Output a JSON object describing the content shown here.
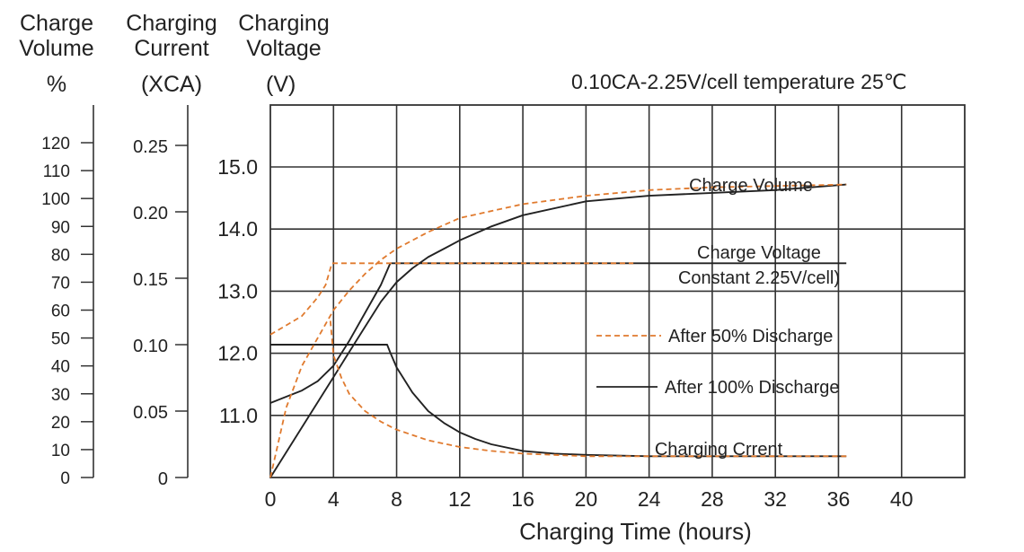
{
  "headers": {
    "volume": {
      "line1": "Charge",
      "line2": "Volume",
      "unit": "%"
    },
    "current": {
      "line1": "Charging",
      "line2": "Current",
      "unit": "(XCA)"
    },
    "voltage": {
      "line1": "Charging",
      "line2": "Voltage",
      "unit": "(V)"
    }
  },
  "condition": "0.10CA-2.25V/cell   temperature 25℃",
  "chart_data": {
    "type": "line",
    "title": "",
    "xlabel": "Charging Time (hours)",
    "x_range": [
      0,
      44
    ],
    "x_ticks": [
      "0",
      "4",
      "8",
      "12",
      "16",
      "20",
      "24",
      "28",
      "32",
      "36",
      "40"
    ],
    "grid": true,
    "axes": {
      "volume": {
        "label": "Charge Volume %",
        "range": [
          0,
          120
        ],
        "ticks": [
          "0",
          "10",
          "20",
          "30",
          "40",
          "50",
          "60",
          "70",
          "80",
          "90",
          "100",
          "110",
          "120"
        ]
      },
      "current": {
        "label": "Charging Current (XCA)",
        "range": [
          0,
          0.25
        ],
        "ticks": [
          "0",
          "0.05",
          "0.10",
          "0.15",
          "0.20",
          "0.25"
        ]
      },
      "voltage": {
        "label": "Charging Voltage (V)",
        "range": [
          10.0,
          15.0
        ],
        "ticks": [
          "11.0",
          "12.0",
          "13.0",
          "14.0",
          "15.0"
        ]
      }
    },
    "annotations": {
      "charge_volume": "Charge Volume",
      "charge_voltage_1": "Charge Voltage",
      "charge_voltage_2": "Constant 2.25V/cell)",
      "charging_current": "Charging Crrent"
    },
    "legend": [
      {
        "label": "After 50% Discharge",
        "style": "dashed",
        "color": "#e07a2e"
      },
      {
        "label": "After 100% Discharge",
        "style": "solid",
        "color": "#222222"
      }
    ],
    "series": [
      {
        "name": "After 100% Discharge",
        "axis": "volume",
        "style": "solid",
        "x": [
          0,
          1,
          2,
          3,
          4,
          5,
          6,
          7,
          8,
          9,
          10,
          11,
          12,
          14,
          16,
          20,
          24,
          28,
          32,
          36.5
        ],
        "values": [
          0,
          9,
          18,
          27,
          36,
          45,
          54,
          63,
          70,
          75,
          79,
          82,
          85,
          90,
          94,
          99,
          101,
          102,
          103,
          105
        ]
      },
      {
        "name": "After 100% Discharge",
        "axis": "voltage",
        "style": "solid",
        "x": [
          0,
          1,
          2,
          3,
          4,
          5,
          6,
          7,
          7.6,
          36.5
        ],
        "values": [
          11.2,
          11.3,
          11.4,
          11.55,
          11.8,
          12.2,
          12.65,
          13.1,
          13.45,
          13.45
        ]
      },
      {
        "name": "After 100% Discharge",
        "axis": "current",
        "style": "solid",
        "x": [
          0,
          7.4,
          7.6,
          8,
          9,
          10,
          11,
          12,
          13,
          14,
          16,
          18,
          20,
          24,
          36.5
        ],
        "values": [
          0.1,
          0.1,
          0.094,
          0.083,
          0.064,
          0.05,
          0.041,
          0.034,
          0.029,
          0.025,
          0.02,
          0.018,
          0.017,
          0.016,
          0.016
        ]
      },
      {
        "name": "After 50% Discharge",
        "axis": "volume",
        "style": "dashed",
        "x": [
          0,
          1,
          2,
          3,
          4,
          5,
          6,
          7,
          8,
          10,
          12,
          16,
          20,
          24,
          28,
          32,
          36.5
        ],
        "values": [
          0,
          25,
          40,
          50,
          60,
          67,
          73,
          78,
          82,
          88,
          93,
          98,
          101,
          103,
          104,
          104.5,
          105
        ]
      },
      {
        "name": "After 50% Discharge",
        "axis": "voltage",
        "style": "dashed",
        "x": [
          0,
          1,
          2,
          3,
          3.5,
          3.9,
          23
        ],
        "values": [
          12.3,
          12.45,
          12.6,
          12.9,
          13.1,
          13.45,
          13.45
        ]
      },
      {
        "name": "After 50% Discharge",
        "axis": "current",
        "style": "dashed",
        "x": [
          3.8,
          4,
          4.5,
          5,
          6,
          7,
          8,
          10,
          12,
          14,
          16,
          20,
          24,
          36.5
        ],
        "values": [
          0.118,
          0.092,
          0.075,
          0.063,
          0.05,
          0.042,
          0.036,
          0.028,
          0.023,
          0.02,
          0.018,
          0.016,
          0.016,
          0.016
        ]
      }
    ]
  }
}
